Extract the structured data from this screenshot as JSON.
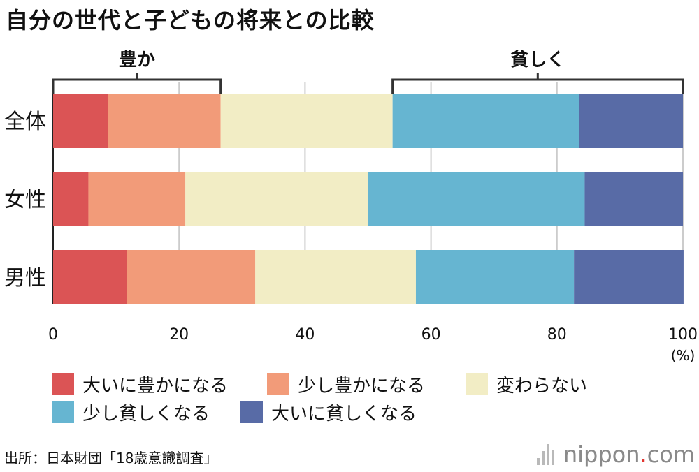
{
  "chart_data": {
    "type": "bar",
    "orientation": "horizontal",
    "stacked": true,
    "title": "自分の世代と子どもの将来との比較",
    "categories": [
      "全体",
      "女性",
      "男性"
    ],
    "series": [
      {
        "name": "大いに豊かになる",
        "color": "#db5455",
        "values": [
          8.7,
          5.6,
          11.7
        ]
      },
      {
        "name": "少し豊かになる",
        "color": "#f29b79",
        "values": [
          17.9,
          15.4,
          20.4
        ]
      },
      {
        "name": "変わらない",
        "color": "#f2edc5",
        "values": [
          27.3,
          29.0,
          25.5
        ]
      },
      {
        "name": "少し貧しくなる",
        "color": "#66b5d1",
        "values": [
          29.6,
          34.4,
          25.1
        ]
      },
      {
        "name": "大いに貧しくなる",
        "color": "#586ba6",
        "values": [
          16.5,
          15.6,
          17.4
        ]
      }
    ],
    "xlim": [
      0,
      100
    ],
    "xticks": [
      0,
      20,
      40,
      60,
      80,
      100
    ],
    "xunit": "(%)",
    "grid": true,
    "brackets": [
      {
        "label": "豊か",
        "from": 0,
        "to": 26.6
      },
      {
        "label": "貧しく",
        "from": 53.9,
        "to": 100
      }
    ]
  },
  "source": "出所：日本財団「18歳意識調査」",
  "brand": {
    "name": "nippon",
    "dot": ".",
    "tld": "com"
  },
  "colors": {
    "text": "#111111",
    "grid": "#cccccc",
    "bracket": "#333333"
  }
}
